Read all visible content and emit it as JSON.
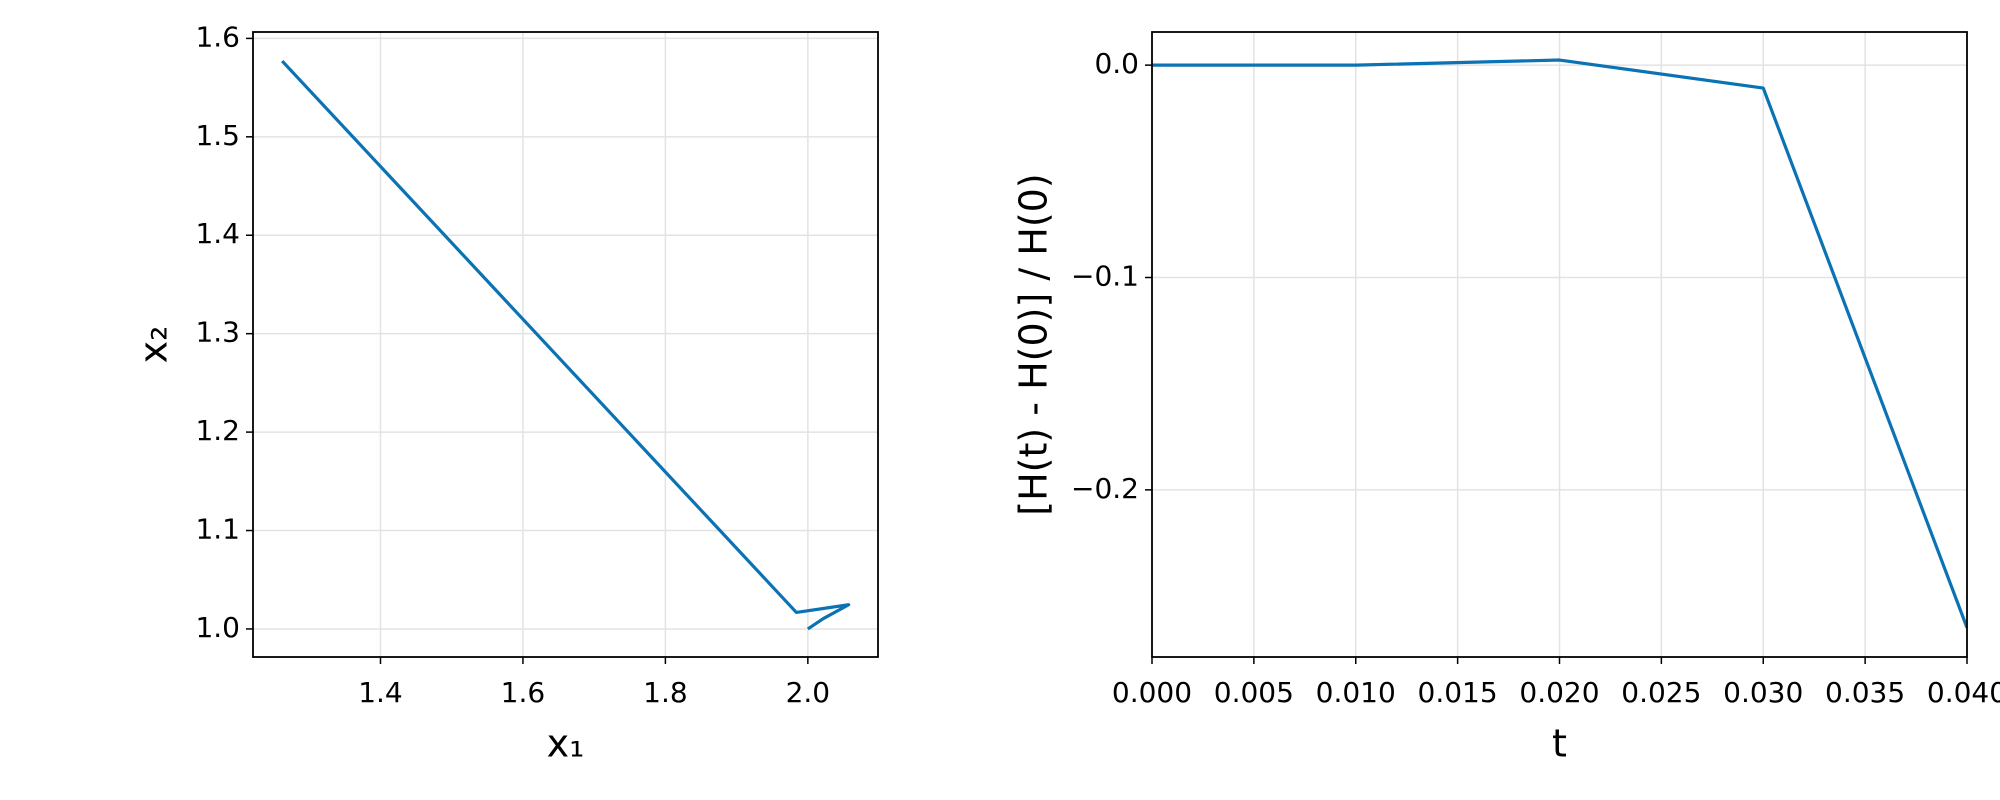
{
  "chart_data": [
    {
      "type": "line",
      "xlabel": "x₁",
      "ylabel": "x₂",
      "x": [
        2.0,
        2.0215,
        2.0573,
        1.9839,
        1.262
      ],
      "values": [
        1.0,
        1.0104,
        1.0246,
        1.0168,
        1.577
      ],
      "color": "#0b72b4",
      "grid": true,
      "xlim": [
        1.221,
        2.0985
      ],
      "ylim": [
        0.9715,
        1.6065
      ],
      "xticks": [
        1.4,
        1.6,
        1.8,
        {
          "value": 2,
          "label": "2.0"
        }
      ],
      "yticks": [
        {
          "value": 1,
          "label": "1.0"
        },
        1.1,
        1.2,
        1.3,
        1.4,
        1.5,
        1.6
      ]
    },
    {
      "type": "line",
      "xlabel": "t",
      "ylabel": "[H(t) - H(0)] / H(0)",
      "x": [
        0,
        0.01,
        0.02,
        0.03,
        0.04
      ],
      "values": [
        0,
        0,
        0.0024,
        -0.0108,
        -0.2649
      ],
      "color": "#0b72b4",
      "grid": true,
      "xlim": [
        0,
        0.04
      ],
      "ylim": [
        -0.2787,
        0.0156
      ],
      "xticks": [
        {
          "value": 0,
          "label": "0.000"
        },
        0.005,
        {
          "value": 0.01,
          "label": "0.010"
        },
        0.015,
        {
          "value": 0.02,
          "label": "0.020"
        },
        0.025,
        {
          "value": 0.03,
          "label": "0.030"
        },
        0.035,
        {
          "value": 0.04,
          "label": "0.040"
        }
      ],
      "yticks": [
        {
          "value": 0,
          "label": "0.0"
        },
        {
          "value": -0.1,
          "label": "−0.1"
        },
        {
          "value": -0.2,
          "label": "−0.2"
        }
      ]
    }
  ]
}
